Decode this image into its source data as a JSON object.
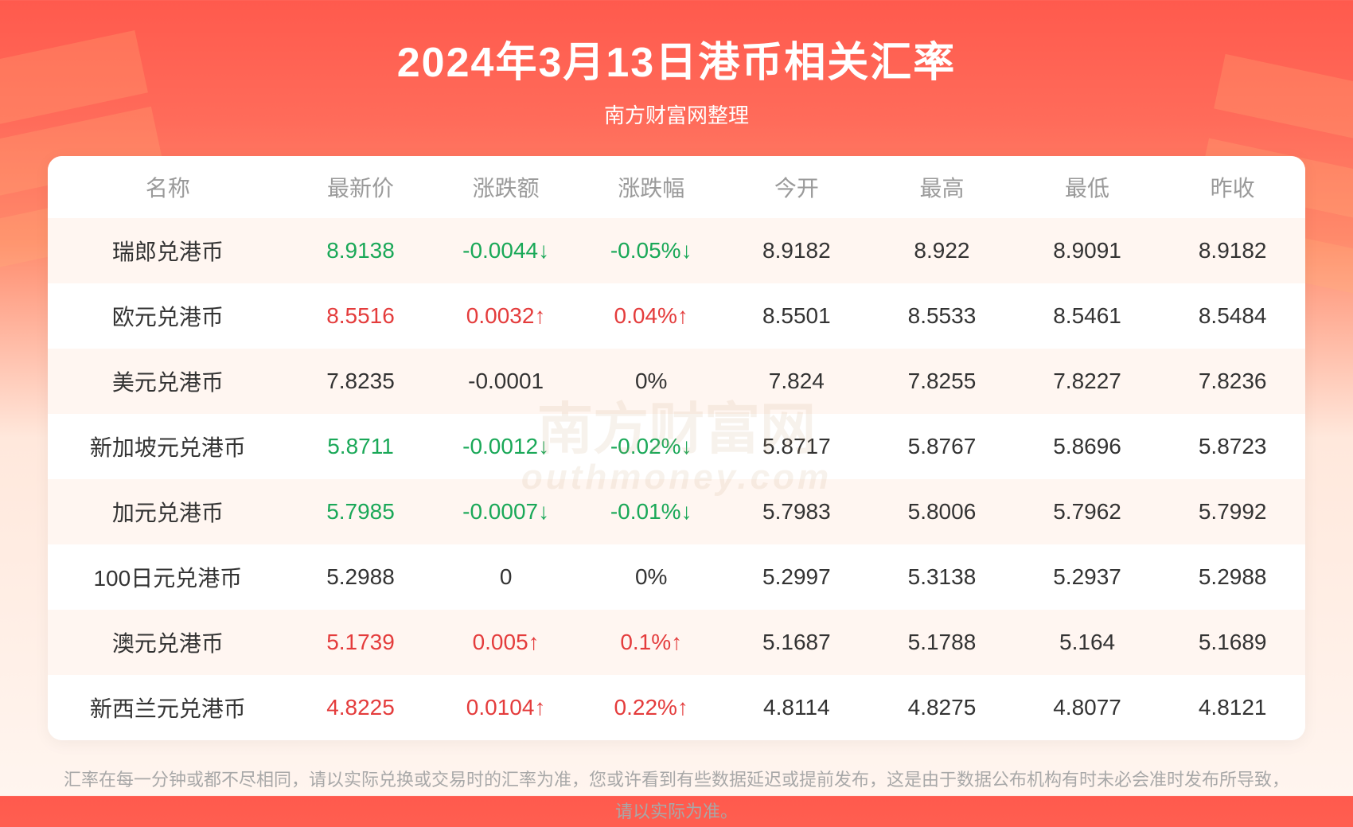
{
  "header": {
    "title": "2024年3月13日港币相关汇率",
    "subtitle": "南方财富网整理"
  },
  "watermark": {
    "line1": "南方财富网",
    "line2": "outhmoney.com"
  },
  "table": {
    "columns": [
      "名称",
      "最新价",
      "涨跌额",
      "涨跌幅",
      "今开",
      "最高",
      "最低",
      "昨收"
    ],
    "rows": [
      {
        "name": "瑞郎兑港币",
        "latest": "8.9138",
        "change": "-0.0044↓",
        "pct": "-0.05%↓",
        "open": "8.9182",
        "high": "8.922",
        "low": "8.9091",
        "prev": "8.9182",
        "dir": "down"
      },
      {
        "name": "欧元兑港币",
        "latest": "8.5516",
        "change": "0.0032↑",
        "pct": "0.04%↑",
        "open": "8.5501",
        "high": "8.5533",
        "low": "8.5461",
        "prev": "8.5484",
        "dir": "up"
      },
      {
        "name": "美元兑港币",
        "latest": "7.8235",
        "change": "-0.0001",
        "pct": "0%",
        "open": "7.824",
        "high": "7.8255",
        "low": "7.8227",
        "prev": "7.8236",
        "dir": "neutral"
      },
      {
        "name": "新加坡元兑港币",
        "latest": "5.8711",
        "change": "-0.0012↓",
        "pct": "-0.02%↓",
        "open": "5.8717",
        "high": "5.8767",
        "low": "5.8696",
        "prev": "5.8723",
        "dir": "down"
      },
      {
        "name": "加元兑港币",
        "latest": "5.7985",
        "change": "-0.0007↓",
        "pct": "-0.01%↓",
        "open": "5.7983",
        "high": "5.8006",
        "low": "5.7962",
        "prev": "5.7992",
        "dir": "down"
      },
      {
        "name": "100日元兑港币",
        "latest": "5.2988",
        "change": "0",
        "pct": "0%",
        "open": "5.2997",
        "high": "5.3138",
        "low": "5.2937",
        "prev": "5.2988",
        "dir": "neutral"
      },
      {
        "name": "澳元兑港币",
        "latest": "5.1739",
        "change": "0.005↑",
        "pct": "0.1%↑",
        "open": "5.1687",
        "high": "5.1788",
        "low": "5.164",
        "prev": "5.1689",
        "dir": "up"
      },
      {
        "name": "新西兰元兑港币",
        "latest": "4.8225",
        "change": "0.0104↑",
        "pct": "0.22%↑",
        "open": "4.8114",
        "high": "4.8275",
        "low": "4.8077",
        "prev": "4.8121",
        "dir": "up"
      }
    ]
  },
  "footer": {
    "line1": "汇率在每一分钟或都不尽相同，请以实际兑换或交易时的汇率为准，您或许看到有些数据延迟或提前发布，这是由于数据公布机构有时未必会准时发布所导致，",
    "line2": "请以实际为准。"
  },
  "colors": {
    "up": "#e43c3c",
    "down": "#1aa858",
    "neutral": "#333333",
    "header_text": "#9a9a9a",
    "row_alt_bg": "#fff6f1"
  }
}
